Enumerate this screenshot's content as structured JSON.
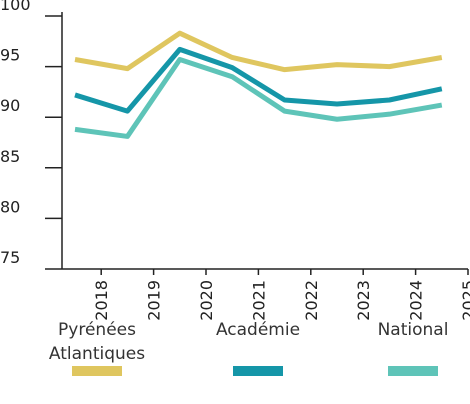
{
  "chart_data": {
    "type": "line",
    "categories": [
      "2018",
      "2019",
      "2020",
      "2021",
      "2022",
      "2023",
      "2024",
      "2025"
    ],
    "series": [
      {
        "name": "Pyrénées Atlantiques",
        "color": "#dfc65f",
        "values": [
          95.7,
          94.8,
          98.3,
          95.9,
          94.7,
          95.2,
          95.0,
          95.9
        ]
      },
      {
        "name": "Académie",
        "color": "#1596a8",
        "values": [
          92.2,
          90.6,
          96.7,
          94.9,
          91.7,
          91.3,
          91.7,
          92.8
        ]
      },
      {
        "name": "National",
        "color": "#5ec4b8",
        "values": [
          88.8,
          88.1,
          95.7,
          94.0,
          90.6,
          89.8,
          90.3,
          91.2
        ]
      }
    ],
    "ylim": [
      75,
      100
    ],
    "yticks": [
      75,
      80,
      85,
      90,
      95,
      100
    ],
    "legend": "bottom"
  }
}
